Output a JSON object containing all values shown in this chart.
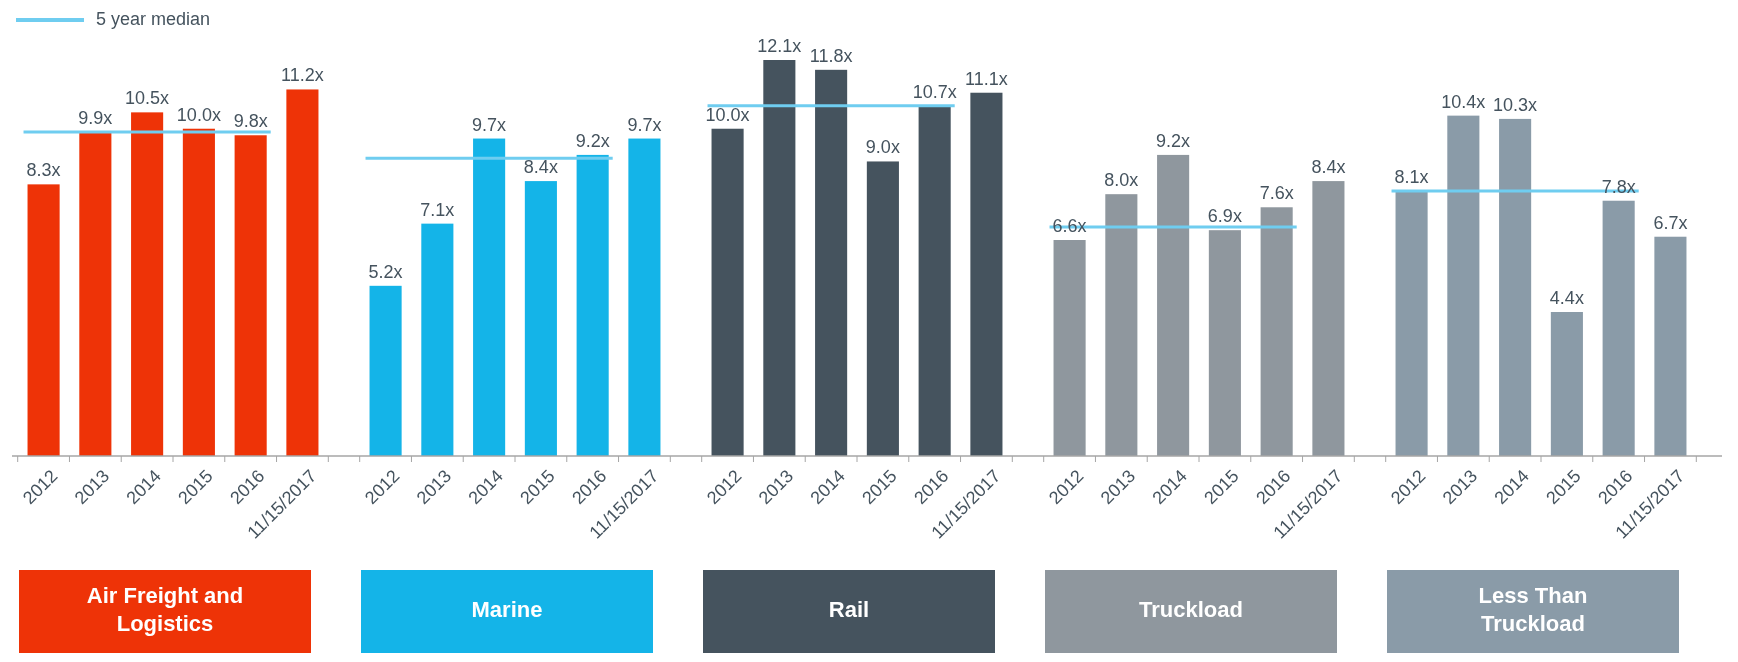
{
  "chart_data": [
    {
      "type": "bar",
      "title": "Air Freight and Logistics",
      "categories": [
        "2012",
        "2013",
        "2014",
        "2015",
        "2016",
        "11/15/2017"
      ],
      "values": [
        8.3,
        9.9,
        10.5,
        10.0,
        9.8,
        11.2
      ],
      "value_labels": [
        "8.3x",
        "9.9x",
        "10.5x",
        "10.0x",
        "9.8x",
        "11.2x"
      ],
      "color": "#ee3307",
      "ref_lines": [
        {
          "axis": "y",
          "value": 9.9,
          "label": "5 year median",
          "color": "#6fcdf0"
        }
      ],
      "legend": "top left",
      "tick_labels": "x"
    },
    {
      "type": "bar",
      "title": "Marine",
      "categories": [
        "2012",
        "2013",
        "2014",
        "2015",
        "2016",
        "11/15/2017"
      ],
      "values": [
        5.2,
        7.1,
        9.7,
        8.4,
        9.2,
        9.7
      ],
      "value_labels": [
        "5.2x",
        "7.1x",
        "9.7x",
        "8.4x",
        "9.2x",
        "9.7x"
      ],
      "color": "#14b4e8",
      "ref_lines": [
        {
          "axis": "y",
          "value": 9.1,
          "color": "#6fcdf0"
        }
      ],
      "tick_labels": "x"
    },
    {
      "type": "bar",
      "title": "Rail",
      "categories": [
        "2012",
        "2013",
        "2014",
        "2015",
        "2016",
        "11/15/2017"
      ],
      "values": [
        10.0,
        12.1,
        11.8,
        9.0,
        10.7,
        11.1
      ],
      "value_labels": [
        "10.0x",
        "12.1x",
        "11.8x",
        "9.0x",
        "10.7x",
        "11.1x"
      ],
      "color": "#45535e",
      "ref_lines": [
        {
          "axis": "y",
          "value": 10.7,
          "color": "#6fcdf0"
        }
      ],
      "tick_labels": "x"
    },
    {
      "type": "bar",
      "title": "Truckload",
      "categories": [
        "2012",
        "2013",
        "2014",
        "2015",
        "2016",
        "11/15/2017"
      ],
      "values": [
        6.6,
        8.0,
        9.2,
        6.9,
        7.6,
        8.4
      ],
      "value_labels": [
        "6.6x",
        "8.0x",
        "9.2x",
        "6.9x",
        "7.6x",
        "8.4x"
      ],
      "color": "#8f979e",
      "ref_lines": [
        {
          "axis": "y",
          "value": 7.0,
          "color": "#6fcdf0"
        }
      ],
      "tick_labels": "x"
    },
    {
      "type": "bar",
      "title": "Less Than Truckload",
      "categories": [
        "2012",
        "2013",
        "2014",
        "2015",
        "2016",
        "11/15/2017"
      ],
      "values": [
        8.1,
        10.4,
        10.3,
        4.4,
        7.8,
        6.7
      ],
      "value_labels": [
        "8.1x",
        "10.4x",
        "10.3x",
        "4.4x",
        "7.8x",
        "6.7x"
      ],
      "color": "#8a9ba8",
      "ref_lines": [
        {
          "axis": "y",
          "value": 8.1,
          "color": "#6fcdf0"
        }
      ],
      "tick_labels": "x"
    }
  ]
}
